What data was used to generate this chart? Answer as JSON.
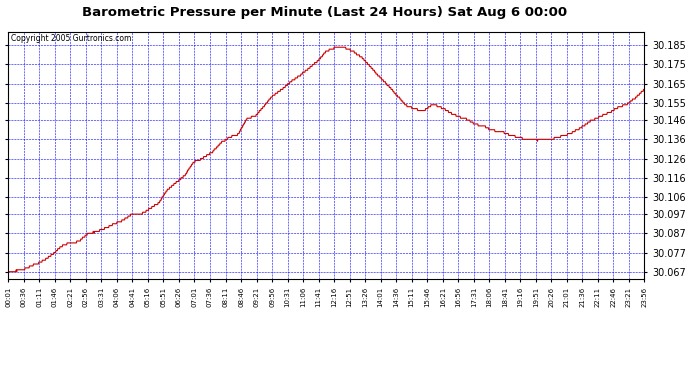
{
  "title": "Barometric Pressure per Minute (Last 24 Hours) Sat Aug 6 00:00",
  "copyright": "Copyright 2005 Gurtronics.com",
  "background_color": "#ffffff",
  "plot_background_color": "#ffffff",
  "grid_color": "#0000ff",
  "line_color": "#cc0000",
  "text_color": "#000000",
  "y_ticks": [
    30.067,
    30.077,
    30.087,
    30.097,
    30.106,
    30.116,
    30.126,
    30.136,
    30.146,
    30.155,
    30.165,
    30.175,
    30.185
  ],
  "y_min": 30.063,
  "y_max": 30.192,
  "x_tick_labels": [
    "00:01",
    "00:36",
    "01:11",
    "01:46",
    "02:21",
    "02:56",
    "03:31",
    "04:06",
    "04:41",
    "05:16",
    "05:51",
    "06:26",
    "07:01",
    "07:36",
    "08:11",
    "08:46",
    "09:21",
    "09:56",
    "10:31",
    "11:06",
    "11:41",
    "12:16",
    "12:51",
    "13:26",
    "14:01",
    "14:36",
    "15:11",
    "15:46",
    "16:21",
    "16:56",
    "17:31",
    "18:06",
    "18:41",
    "19:16",
    "19:51",
    "20:26",
    "21:01",
    "21:36",
    "22:11",
    "22:46",
    "23:21",
    "23:56"
  ],
  "keypoints_t": [
    0,
    30,
    60,
    80,
    100,
    120,
    140,
    160,
    180,
    200,
    220,
    240,
    260,
    280,
    300,
    320,
    340,
    360,
    380,
    400,
    420,
    440,
    460,
    480,
    500,
    520,
    540,
    560,
    580,
    600,
    620,
    640,
    660,
    680,
    700,
    720,
    740,
    760,
    780,
    800,
    820,
    840,
    860,
    880,
    900,
    920,
    940,
    960,
    980,
    1000,
    1020,
    1040,
    1060,
    1080,
    1100,
    1120,
    1140,
    1160,
    1180,
    1200,
    1220,
    1240,
    1260,
    1280,
    1300,
    1320,
    1340,
    1360,
    1380,
    1400,
    1420,
    1439
  ],
  "keypoints_v": [
    30.067,
    30.068,
    30.071,
    30.073,
    30.076,
    30.08,
    30.082,
    30.083,
    30.087,
    30.088,
    30.09,
    30.092,
    30.094,
    30.097,
    30.097,
    30.1,
    30.103,
    30.11,
    30.114,
    30.118,
    30.125,
    30.127,
    30.13,
    30.135,
    30.138,
    30.14,
    30.148,
    30.15,
    30.155,
    30.16,
    30.163,
    30.167,
    30.17,
    30.174,
    30.178,
    30.183,
    30.185,
    30.185,
    30.183,
    30.18,
    30.175,
    30.17,
    30.165,
    30.16,
    30.155,
    30.153,
    30.152,
    30.155,
    30.153,
    30.15,
    30.148,
    30.146,
    30.144,
    30.143,
    30.141,
    30.14,
    30.138,
    30.137,
    30.136,
    30.136,
    30.136,
    30.137,
    30.138,
    30.14,
    30.143,
    30.146,
    30.148,
    30.15,
    30.153,
    30.155,
    30.158,
    30.162
  ]
}
